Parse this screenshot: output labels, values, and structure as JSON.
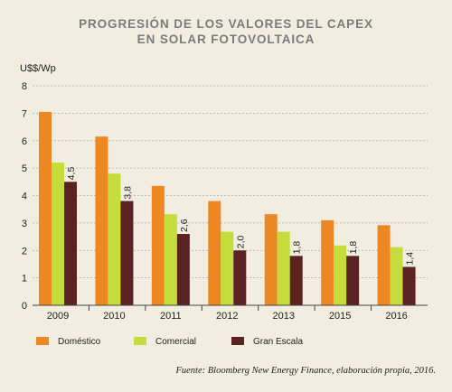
{
  "chart_data": {
    "type": "bar",
    "title_lines": [
      "PROGRESIÓN DE LOS VALORES DEL CAPEX",
      "EN SOLAR FOTOVOLTAICA"
    ],
    "ylabel": "U$$/Wp",
    "xlabel": "",
    "ylim": [
      0,
      8
    ],
    "yticks": [
      0,
      1,
      2,
      3,
      4,
      5,
      6,
      7,
      8
    ],
    "grid": true,
    "legend_position": "bottom",
    "categories": [
      "2009",
      "2010",
      "2011",
      "2012",
      "2013",
      "2015",
      "2016"
    ],
    "series": [
      {
        "name": "Doméstico",
        "color": "#ec8724",
        "values": [
          7.05,
          6.15,
          4.35,
          3.8,
          3.32,
          3.1,
          2.92
        ]
      },
      {
        "name": "Comercial",
        "color": "#c5dc3c",
        "values": [
          5.2,
          4.8,
          3.32,
          2.68,
          2.68,
          2.18,
          2.12
        ]
      },
      {
        "name": "Gran Escala",
        "color": "#5b2222",
        "values": [
          4.5,
          3.8,
          2.6,
          2.0,
          1.8,
          1.8,
          1.4
        ],
        "data_labels": [
          "4,5",
          "3,8",
          "2,6",
          "2,0",
          "1,8",
          "1,8",
          "1,4"
        ]
      }
    ]
  },
  "source_text": "Fuente: Bloomberg New Energy Finance, elaboración propia, 2016."
}
